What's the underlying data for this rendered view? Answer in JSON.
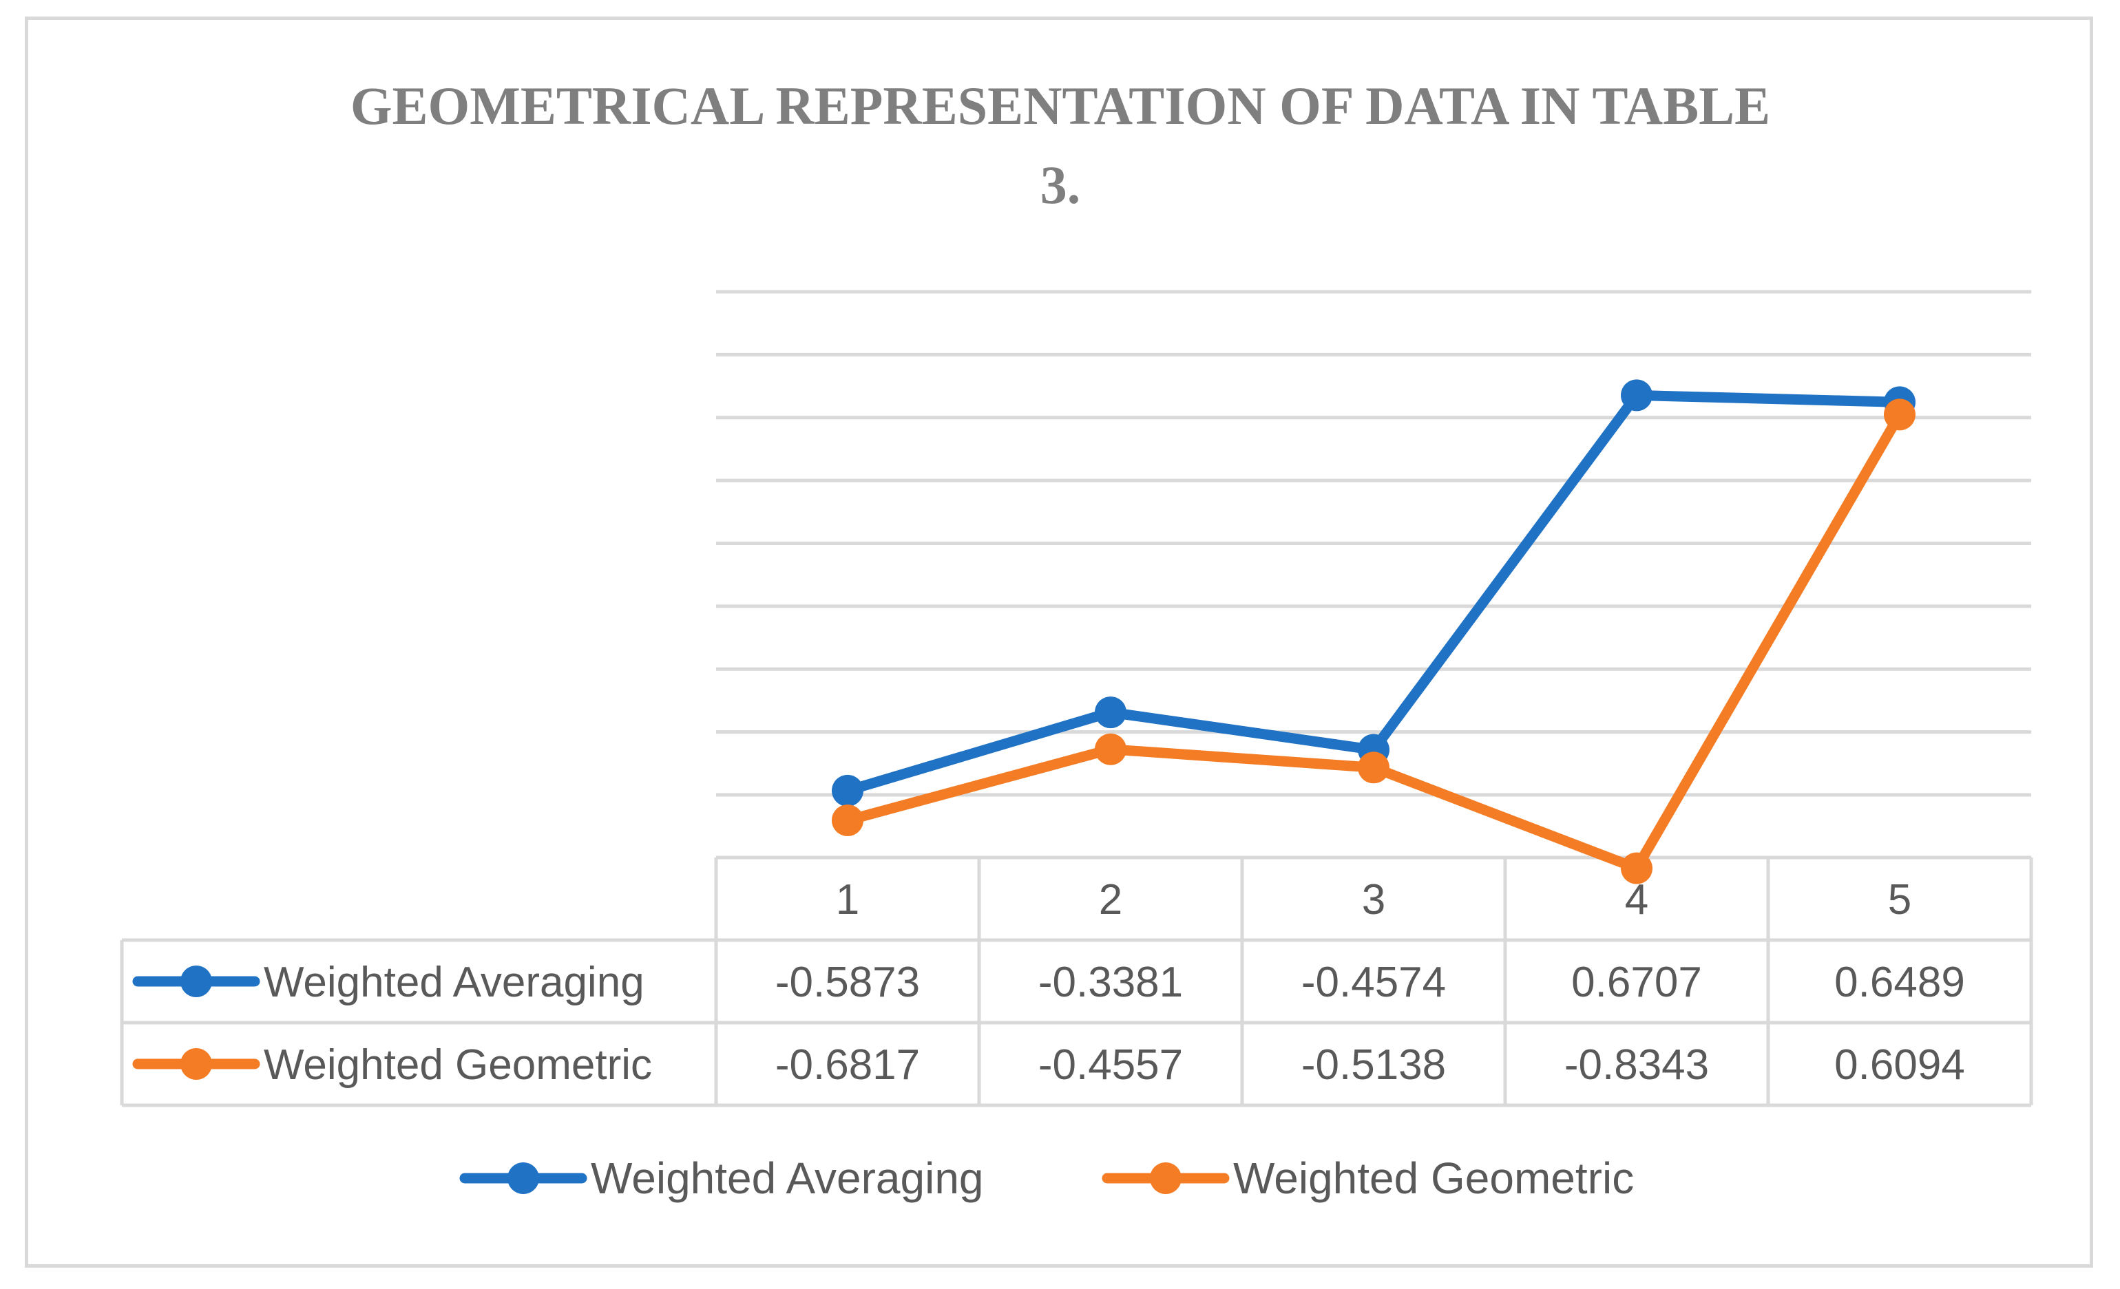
{
  "chart_data": {
    "type": "line",
    "title_line1": "GEOMETRICAL REPRESENTATION OF DATA IN TABLE",
    "title_line2": "3.",
    "categories": [
      "1",
      "2",
      "3",
      "4",
      "5"
    ],
    "series": [
      {
        "name": "Weighted Averaging",
        "color": "#1f72c4",
        "values": [
          -0.5873,
          -0.3381,
          -0.4574,
          0.6707,
          0.6489
        ],
        "labels": [
          "-0.5873",
          "-0.3381",
          "-0.4574",
          "0.6707",
          "0.6489"
        ]
      },
      {
        "name": "Weighted Geometric",
        "color": "#f47c24",
        "values": [
          -0.6817,
          -0.4557,
          -0.5138,
          -0.8343,
          0.6094
        ],
        "labels": [
          "-0.6817",
          "-0.4557",
          "-0.5138",
          "-0.8343",
          "0.6094"
        ]
      }
    ],
    "ylim": [
      -0.8,
      1
    ],
    "gridline_count": 9,
    "legend_position": "bottom",
    "data_table": true,
    "xlabel": "",
    "ylabel": ""
  }
}
